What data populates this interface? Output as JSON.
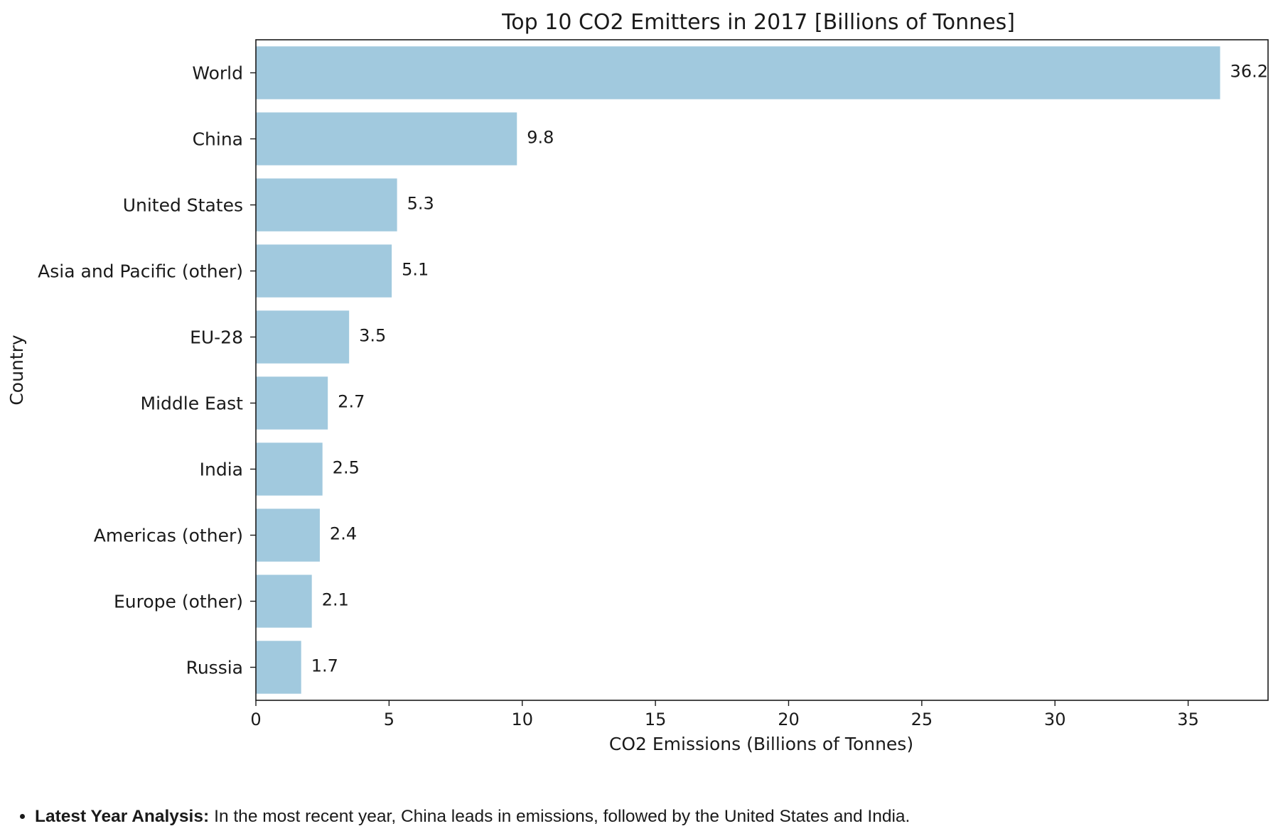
{
  "chart_data": {
    "type": "bar",
    "orientation": "horizontal",
    "title": "Top 10 CO2 Emitters in 2017 [Billions of Tonnes]",
    "xlabel": "CO2 Emissions (Billions of Tonnes)",
    "ylabel": "Country",
    "categories": [
      "World",
      "China",
      "United States",
      "Asia and Pacific (other)",
      "EU-28",
      "Middle East",
      "India",
      "Americas (other)",
      "Europe (other)",
      "Russia"
    ],
    "values": [
      36.2,
      9.8,
      5.3,
      5.1,
      3.5,
      2.7,
      2.5,
      2.4,
      2.1,
      1.7
    ],
    "data_labels": [
      "36.2",
      "9.8",
      "5.3",
      "5.1",
      "3.5",
      "2.7",
      "2.5",
      "2.4",
      "2.1",
      "1.7"
    ],
    "xlim": [
      0,
      38
    ],
    "xticks": [
      0,
      5,
      10,
      15,
      20,
      25,
      30,
      35
    ],
    "bar_color": "#a1c9de",
    "grid": false,
    "legend": "none"
  },
  "note": {
    "label": "Latest Year Analysis:",
    "text": "In the most recent year, China leads in emissions, followed by the United States and India."
  }
}
